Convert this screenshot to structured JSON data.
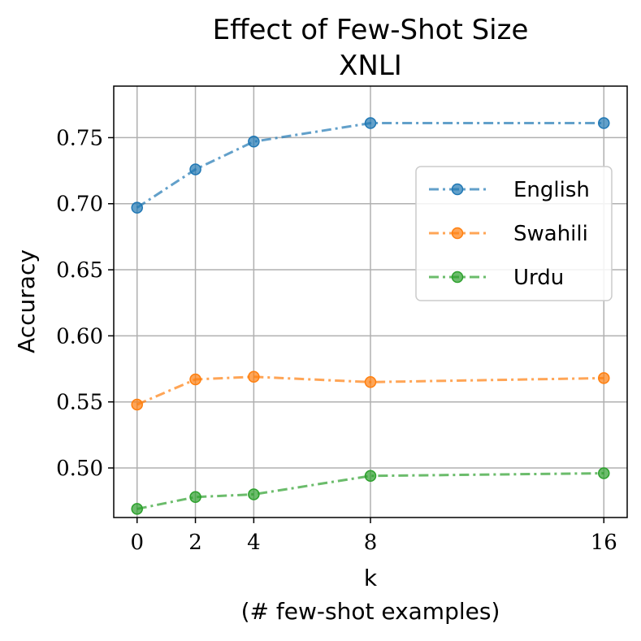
{
  "chart_data": {
    "type": "line",
    "title_line1": "Effect of Few-Shot Size",
    "title_line2": "XNLI",
    "xlabel_line1": "k",
    "xlabel_line2": "(# few-shot examples)",
    "ylabel": "Accuracy",
    "x": [
      0,
      2,
      4,
      8,
      16
    ],
    "x_tick_labels": [
      "0",
      "2",
      "4",
      "8",
      "16"
    ],
    "xlim": [
      -0.8,
      16.8
    ],
    "y_ticks": [
      0.5,
      0.55,
      0.6,
      0.65,
      0.7,
      0.75
    ],
    "y_tick_labels": [
      "0.50",
      "0.55",
      "0.60",
      "0.65",
      "0.70",
      "0.75"
    ],
    "ylim": [
      0.4625,
      0.789
    ],
    "grid": true,
    "legend_position": "right",
    "series": [
      {
        "name": "English",
        "color": "#1f77b4",
        "values": [
          0.697,
          0.726,
          0.747,
          0.761,
          0.761
        ]
      },
      {
        "name": "Swahili",
        "color": "#ff7f0e",
        "values": [
          0.548,
          0.567,
          0.569,
          0.565,
          0.568
        ]
      },
      {
        "name": "Urdu",
        "color": "#2ca02c",
        "values": [
          0.469,
          0.478,
          0.48,
          0.494,
          0.496
        ]
      }
    ]
  }
}
